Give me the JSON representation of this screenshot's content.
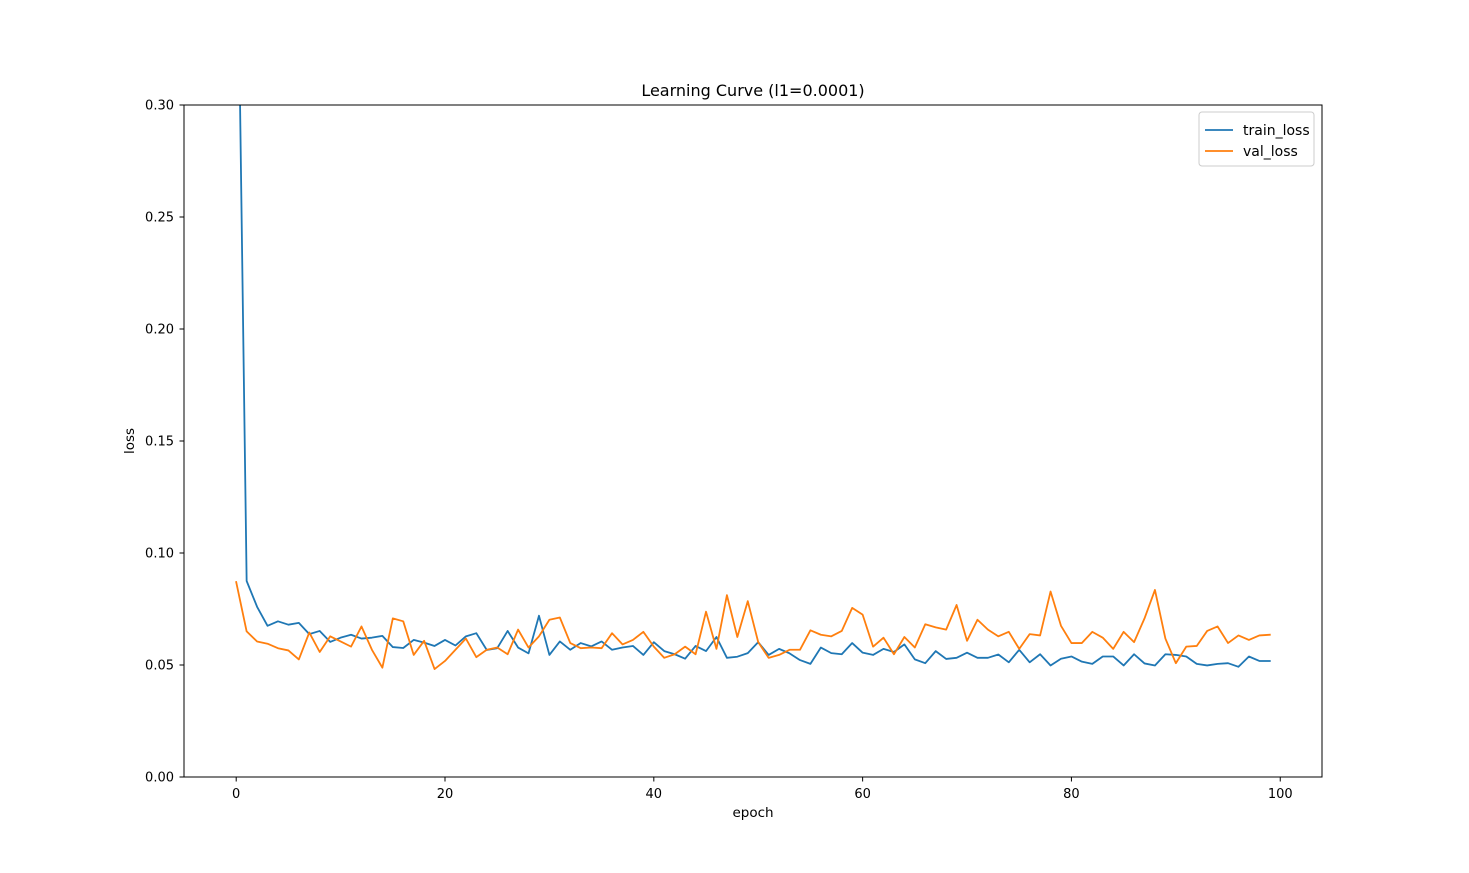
{
  "chart_data": {
    "type": "line",
    "title": "Learning Curve (l1=0.0001)",
    "xlabel": "epoch",
    "ylabel": "loss",
    "xlim": [
      -5,
      104
    ],
    "ylim": [
      0,
      0.3
    ],
    "xticks": [
      0,
      20,
      40,
      60,
      80,
      100
    ],
    "yticks": [
      0.0,
      0.05,
      0.1,
      0.15,
      0.2,
      0.25,
      0.3
    ],
    "xtick_labels": [
      "0",
      "20",
      "40",
      "60",
      "80",
      "100"
    ],
    "ytick_labels": [
      "0.00",
      "0.05",
      "0.10",
      "0.15",
      "0.20",
      "0.25",
      "0.30"
    ],
    "legend_position": "top-right",
    "grid": false,
    "series": [
      {
        "name": "train_loss",
        "color": "#1f77b4",
        "values": [
          0.425,
          0.0875,
          0.076,
          0.0675,
          0.0695,
          0.068,
          0.0688,
          0.0638,
          0.0652,
          0.0603,
          0.0622,
          0.0635,
          0.0618,
          0.0622,
          0.063,
          0.058,
          0.0576,
          0.0612,
          0.06,
          0.0585,
          0.0612,
          0.0587,
          0.0628,
          0.0642,
          0.0567,
          0.0575,
          0.0652,
          0.0578,
          0.0552,
          0.072,
          0.0545,
          0.0605,
          0.0568,
          0.0598,
          0.0583,
          0.0605,
          0.0568,
          0.0578,
          0.0585,
          0.0545,
          0.0602,
          0.0562,
          0.0548,
          0.0528,
          0.0585,
          0.0562,
          0.0625,
          0.0532,
          0.0537,
          0.0553,
          0.0602,
          0.0545,
          0.0572,
          0.0552,
          0.0522,
          0.0505,
          0.0578,
          0.0553,
          0.0548,
          0.0598,
          0.0555,
          0.0545,
          0.0572,
          0.0558,
          0.0592,
          0.0525,
          0.0508,
          0.0562,
          0.0527,
          0.0532,
          0.0555,
          0.0532,
          0.0532,
          0.0547,
          0.0512,
          0.0568,
          0.0512,
          0.0548,
          0.0498,
          0.0528,
          0.0538,
          0.0515,
          0.0505,
          0.0538,
          0.0538,
          0.0498,
          0.0548,
          0.0507,
          0.0498,
          0.0548,
          0.0545,
          0.0538,
          0.0505,
          0.0498,
          0.0505,
          0.0508,
          0.0492,
          0.0538,
          0.0518,
          0.0518
        ]
      },
      {
        "name": "val_loss",
        "color": "#ff7f0e",
        "values": [
          0.087,
          0.065,
          0.0605,
          0.0595,
          0.0575,
          0.0565,
          0.0525,
          0.0645,
          0.0558,
          0.0628,
          0.0605,
          0.0582,
          0.0672,
          0.0568,
          0.0488,
          0.0708,
          0.0695,
          0.0545,
          0.0608,
          0.0482,
          0.0518,
          0.0568,
          0.0618,
          0.0535,
          0.0568,
          0.0578,
          0.0548,
          0.0658,
          0.0578,
          0.0628,
          0.0702,
          0.0712,
          0.0598,
          0.0575,
          0.0578,
          0.0575,
          0.0642,
          0.0592,
          0.0612,
          0.0648,
          0.0582,
          0.0532,
          0.0548,
          0.0582,
          0.0548,
          0.0738,
          0.0572,
          0.0812,
          0.0625,
          0.0785,
          0.0602,
          0.0532,
          0.0545,
          0.0568,
          0.0568,
          0.0655,
          0.0635,
          0.0628,
          0.0652,
          0.0755,
          0.0725,
          0.0582,
          0.0622,
          0.0548,
          0.0625,
          0.0578,
          0.0682,
          0.0668,
          0.0658,
          0.0768,
          0.0608,
          0.0702,
          0.0658,
          0.0628,
          0.0648,
          0.0572,
          0.0638,
          0.0632,
          0.0828,
          0.0675,
          0.0598,
          0.0598,
          0.0648,
          0.0622,
          0.0572,
          0.0648,
          0.0602,
          0.0708,
          0.0835,
          0.0618,
          0.0508,
          0.0582,
          0.0585,
          0.0652,
          0.0672,
          0.0598,
          0.0632,
          0.0612,
          0.0632,
          0.0635
        ]
      }
    ]
  }
}
